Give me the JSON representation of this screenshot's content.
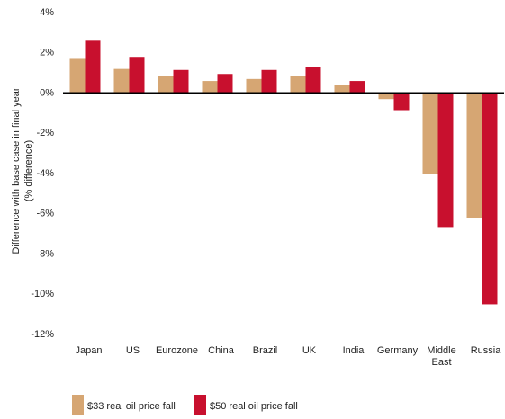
{
  "chart_data": {
    "type": "bar",
    "y_label": [
      "Difference with base case in final year",
      "(% difference)"
    ],
    "categories": [
      "Japan",
      "US",
      "Eurozone",
      "China",
      "Brazil",
      "UK",
      "India",
      "Germany",
      "Middle East",
      "Russia"
    ],
    "series": [
      {
        "name": "$33 real oil price fall",
        "color": "#d6a673",
        "values": [
          1.7,
          1.2,
          0.85,
          0.6,
          0.7,
          0.85,
          0.4,
          -0.3,
          -4.0,
          -6.2
        ]
      },
      {
        "name": "$50 real oil price fall",
        "color": "#c8102e",
        "values": [
          2.6,
          1.8,
          1.15,
          0.95,
          1.15,
          1.3,
          0.6,
          -0.85,
          -6.7,
          -10.5
        ]
      }
    ],
    "ylim": [
      -12,
      4
    ],
    "yticks": [
      {
        "value": 4,
        "label": "4%"
      },
      {
        "value": 2,
        "label": "2%"
      },
      {
        "value": 0,
        "label": "0%"
      },
      {
        "value": -2,
        "label": "-2%"
      },
      {
        "value": -4,
        "label": "-4%"
      },
      {
        "value": -6,
        "label": "-6%"
      },
      {
        "value": -8,
        "label": "-8%"
      },
      {
        "value": -10,
        "label": "-10%"
      },
      {
        "value": -12,
        "label": "-12%"
      }
    ],
    "grid": false,
    "legend": "bottom"
  }
}
